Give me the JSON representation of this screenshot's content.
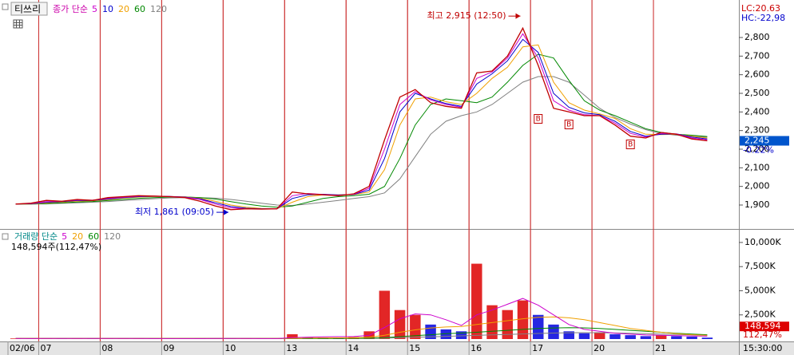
{
  "chart_data": [
    {
      "type": "line",
      "title": "티쓰리",
      "legend_title": "종가 단순",
      "categories": [
        "02/06",
        null,
        "07",
        null,
        null,
        null,
        "08",
        null,
        null,
        null,
        "09",
        null,
        null,
        null,
        "10",
        null,
        null,
        null,
        "13",
        null,
        null,
        null,
        "14",
        null,
        null,
        null,
        "15",
        null,
        null,
        null,
        "16",
        null,
        null,
        null,
        "17",
        null,
        null,
        null,
        "20",
        null,
        null,
        null,
        "21",
        null,
        null,
        null
      ],
      "series": [
        {
          "color": "#c00000",
          "values": [
            1905,
            1910,
            1925,
            1920,
            1930,
            1925,
            1940,
            1945,
            1950,
            1948,
            1945,
            1940,
            1920,
            1895,
            1875,
            1880,
            1878,
            1880,
            1970,
            1960,
            1955,
            1950,
            1960,
            2000,
            2250,
            2480,
            2520,
            2450,
            2430,
            2420,
            2610,
            2620,
            2700,
            2850,
            2650,
            2420,
            2400,
            2380,
            2380,
            2330,
            2270,
            2260,
            2290,
            2280,
            2255,
            2245
          ]
        },
        {
          "name": "5",
          "color": "#cc00cc",
          "values": [
            1905,
            1908,
            1918,
            1920,
            1926,
            1926,
            1935,
            1942,
            1947,
            1948,
            1946,
            1942,
            1930,
            1905,
            1885,
            1880,
            1879,
            1880,
            1950,
            1962,
            1957,
            1952,
            1958,
            1990,
            2200,
            2440,
            2510,
            2465,
            2440,
            2425,
            2580,
            2615,
            2690,
            2820,
            2690,
            2460,
            2410,
            2385,
            2380,
            2340,
            2285,
            2265,
            2285,
            2282,
            2260,
            2250
          ]
        },
        {
          "name": "10",
          "color": "#0000cc",
          "values": [
            1905,
            1907,
            1915,
            1918,
            1924,
            1925,
            1932,
            1940,
            1945,
            1947,
            1946,
            1943,
            1933,
            1912,
            1892,
            1883,
            1880,
            1880,
            1935,
            1955,
            1958,
            1954,
            1957,
            1980,
            2150,
            2400,
            2500,
            2470,
            2445,
            2430,
            2550,
            2605,
            2675,
            2790,
            2720,
            2500,
            2425,
            2395,
            2385,
            2350,
            2295,
            2270,
            2280,
            2282,
            2265,
            2255
          ]
        },
        {
          "name": "20",
          "color": "#f0a000",
          "values": [
            1905,
            1906,
            1912,
            1916,
            1921,
            1923,
            1929,
            1937,
            1943,
            1946,
            1946,
            1944,
            1936,
            1920,
            1900,
            1888,
            1882,
            1880,
            1915,
            1945,
            1955,
            1955,
            1956,
            1970,
            2090,
            2330,
            2470,
            2480,
            2455,
            2440,
            2500,
            2580,
            2640,
            2750,
            2760,
            2560,
            2450,
            2410,
            2390,
            2365,
            2310,
            2280,
            2278,
            2280,
            2270,
            2260
          ]
        },
        {
          "name": "60",
          "color": "#008800",
          "values": [
            1905,
            1905,
            1908,
            1912,
            1916,
            1919,
            1924,
            1930,
            1936,
            1940,
            1943,
            1944,
            1940,
            1932,
            1918,
            1905,
            1895,
            1888,
            1895,
            1915,
            1935,
            1945,
            1950,
            1958,
            2000,
            2150,
            2330,
            2440,
            2470,
            2460,
            2450,
            2480,
            2560,
            2650,
            2710,
            2690,
            2570,
            2460,
            2410,
            2380,
            2345,
            2310,
            2290,
            2280,
            2275,
            2268
          ]
        },
        {
          "name": "120",
          "color": "#808080",
          "values": [
            1905,
            1905,
            1906,
            1909,
            1912,
            1915,
            1919,
            1924,
            1929,
            1934,
            1938,
            1940,
            1940,
            1937,
            1930,
            1920,
            1910,
            1900,
            1898,
            1905,
            1915,
            1925,
            1935,
            1945,
            1965,
            2040,
            2160,
            2280,
            2350,
            2380,
            2400,
            2440,
            2500,
            2560,
            2590,
            2590,
            2560,
            2490,
            2420,
            2370,
            2335,
            2305,
            2285,
            2275,
            2270,
            2265
          ]
        }
      ],
      "ylim": [
        1780,
        2980
      ],
      "yticks": [
        {
          "value": 1900,
          "label": "1,900"
        },
        {
          "value": 2000,
          "label": "2,000"
        },
        {
          "value": 2100,
          "label": "2,100"
        },
        {
          "value": 2200,
          "label": "2,200"
        },
        {
          "value": 2300,
          "label": "2,300"
        },
        {
          "value": 2400,
          "label": "2,400"
        },
        {
          "value": 2500,
          "label": "2,500"
        },
        {
          "value": 2600,
          "label": "2,600"
        },
        {
          "value": 2700,
          "label": "2,700"
        },
        {
          "value": 2800,
          "label": "2,800"
        }
      ],
      "annotations": [
        {
          "text": "최고 2,915 (12:50)",
          "index": 33,
          "value": 2915,
          "color": "#c00000"
        },
        {
          "text": "최저 1,861 (09:05)",
          "index": 14,
          "value": 1861,
          "color": "#0000cc"
        }
      ],
      "signals": {
        "label": "B",
        "color": "#c00000",
        "points": [
          {
            "index": 34,
            "value": 2365
          },
          {
            "index": 36,
            "value": 2335
          },
          {
            "index": 40,
            "value": 2228
          }
        ]
      },
      "lc_label": "LC:20.63",
      "hc_label": "HC:-22,98",
      "current": {
        "value": 2245,
        "label": "2,245",
        "change": "-0.22%"
      },
      "time_label": "15:30:00"
    },
    {
      "type": "bar",
      "legend_title": "거래량 단순",
      "info": "148,594주(112,47%)",
      "up_color": "#dd0000",
      "down_color": "#0000dd",
      "series": [
        {
          "color": "#aa00aa",
          "values": [
            60,
            40,
            80,
            50,
            60,
            40,
            70,
            60,
            50,
            40,
            40,
            50,
            60,
            80,
            60,
            40,
            30,
            40,
            500,
            200,
            150,
            120,
            200,
            800,
            5000,
            3000,
            2500,
            1500,
            1000,
            800,
            7800,
            3500,
            3000,
            4000,
            2500,
            1500,
            800,
            600,
            700,
            500,
            400,
            300,
            400,
            300,
            250,
            148.594
          ]
        },
        {
          "name": "5",
          "type": "line",
          "color": "#cc00cc",
          "values": [
            60,
            50,
            60,
            58,
            60,
            56,
            60,
            58,
            56,
            52,
            50,
            50,
            52,
            60,
            62,
            56,
            50,
            46,
            150,
            200,
            230,
            250,
            260,
            380,
            1200,
            2100,
            2600,
            2500,
            2000,
            1400,
            2500,
            3000,
            3600,
            4200,
            3500,
            2500,
            1500,
            1000,
            800,
            600,
            500,
            420,
            400,
            350,
            320,
            300
          ]
        },
        {
          "name": "20",
          "type": "line",
          "color": "#f0a000",
          "values": [
            60,
            55,
            57,
            57,
            58,
            57,
            58,
            59,
            58,
            56,
            55,
            55,
            55,
            57,
            58,
            57,
            55,
            54,
            80,
            100,
            115,
            125,
            135,
            170,
            400,
            700,
            950,
            1150,
            1250,
            1300,
            1500,
            1700,
            1900,
            2100,
            2250,
            2300,
            2200,
            2000,
            1700,
            1400,
            1100,
            900,
            700,
            550,
            450,
            380
          ]
        },
        {
          "name": "60",
          "type": "line",
          "color": "#008800",
          "values": [
            60,
            58,
            58,
            58,
            58,
            58,
            58,
            58,
            58,
            58,
            57,
            57,
            57,
            57,
            57,
            57,
            57,
            56,
            60,
            65,
            70,
            75,
            80,
            90,
            150,
            250,
            350,
            450,
            550,
            620,
            700,
            800,
            900,
            1000,
            1100,
            1150,
            1180,
            1160,
            1100,
            1000,
            900,
            800,
            700,
            600,
            520,
            450
          ]
        },
        {
          "name": "120",
          "type": "line",
          "color": "#808080",
          "values": [
            60,
            59,
            59,
            59,
            59,
            59,
            59,
            59,
            59,
            58,
            58,
            58,
            58,
            58,
            58,
            58,
            58,
            58,
            59,
            60,
            62,
            64,
            66,
            70,
            90,
            130,
            180,
            230,
            280,
            330,
            380,
            430,
            480,
            530,
            580,
            620,
            650,
            660,
            650,
            630,
            600,
            560,
            520,
            480,
            440,
            400
          ]
        }
      ],
      "ylim": [
        0,
        11150
      ],
      "yticks": [
        {
          "value": 2500,
          "label": "2,500K"
        },
        {
          "value": 5000,
          "label": "5,000K"
        },
        {
          "value": 7500,
          "label": "7,500K"
        },
        {
          "value": 10000,
          "label": "10,000K"
        }
      ],
      "current": {
        "value": 148.594,
        "label": "148,594",
        "ratio": "112,47%"
      }
    }
  ]
}
